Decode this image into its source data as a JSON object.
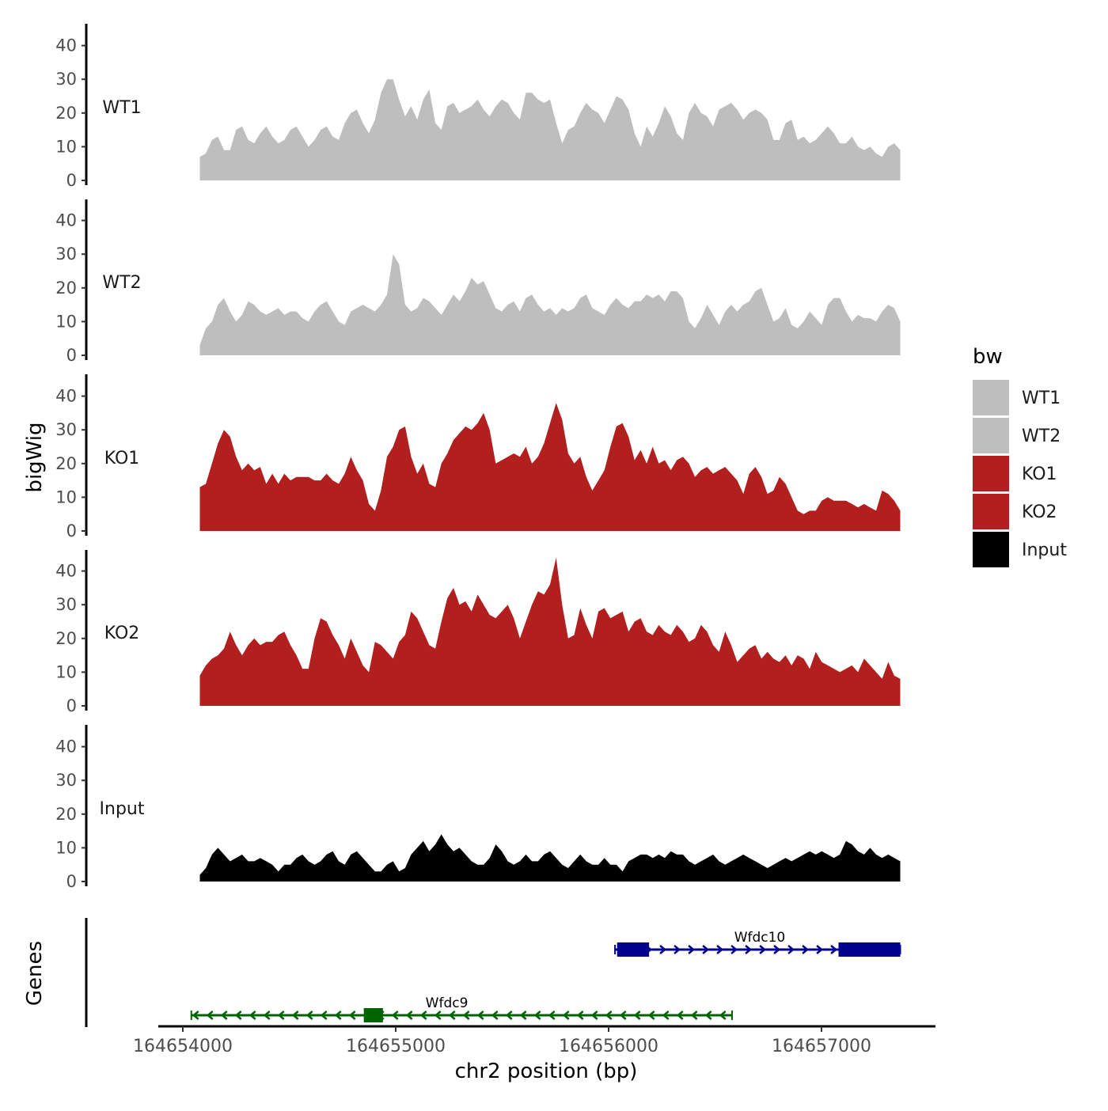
{
  "chart_data": [
    {
      "type": "area",
      "title": "",
      "ylabel": "bigWig",
      "xlabel": "chr2 position (bp)",
      "xlim": [
        164653800,
        164657500
      ],
      "ylim": [
        0,
        45
      ],
      "yticks": [
        0,
        10,
        20,
        30,
        40
      ],
      "track_range": [
        164654080,
        164657370
      ],
      "series": [
        {
          "name": "WT1",
          "color": "#bebebe",
          "values": [
            7,
            8,
            12,
            13,
            9,
            9,
            15,
            16,
            12,
            11,
            14,
            16,
            13,
            11,
            12,
            15,
            16,
            13,
            10,
            12,
            15,
            16,
            13,
            12,
            17,
            20,
            21,
            17,
            14,
            18,
            26,
            30,
            30,
            24,
            19,
            22,
            18,
            24,
            27,
            17,
            15,
            22,
            23,
            20,
            21,
            22,
            24,
            21,
            19,
            22,
            24,
            23,
            20,
            18,
            26,
            26,
            24,
            23,
            24,
            17,
            11,
            15,
            16,
            20,
            23,
            21,
            20,
            17,
            21,
            25,
            24,
            21,
            14,
            10,
            16,
            13,
            17,
            22,
            19,
            14,
            12,
            20,
            23,
            20,
            19,
            16,
            21,
            22,
            23,
            21,
            18,
            20,
            21,
            20,
            18,
            12,
            12,
            17,
            18,
            12,
            13,
            11,
            12,
            14,
            16,
            14,
            11,
            11,
            13,
            10,
            9,
            10,
            8,
            7,
            10,
            11,
            9
          ]
        },
        {
          "name": "WT2",
          "color": "#bebebe",
          "values": [
            3,
            8,
            10,
            15,
            17,
            13,
            10,
            12,
            16,
            15,
            13,
            12,
            13,
            14,
            12,
            13,
            13,
            11,
            10,
            13,
            15,
            16,
            13,
            10,
            9,
            13,
            14,
            15,
            14,
            13,
            15,
            18,
            30,
            27,
            15,
            13,
            14,
            17,
            16,
            14,
            12,
            15,
            18,
            16,
            19,
            23,
            21,
            22,
            18,
            14,
            13,
            15,
            16,
            13,
            17,
            18,
            15,
            13,
            14,
            12,
            14,
            13,
            14,
            17,
            18,
            14,
            13,
            12,
            15,
            17,
            15,
            14,
            16,
            16,
            18,
            17,
            18,
            16,
            19,
            19,
            17,
            10,
            8,
            11,
            15,
            12,
            9,
            13,
            15,
            13,
            15,
            16,
            19,
            20,
            15,
            10,
            11,
            14,
            9,
            8,
            10,
            13,
            11,
            9,
            15,
            17,
            17,
            13,
            10,
            12,
            11,
            11,
            10,
            13,
            15,
            14,
            10
          ]
        },
        {
          "name": "KO1",
          "color": "#b21f1f",
          "values": [
            13,
            14,
            20,
            26,
            30,
            28,
            22,
            18,
            20,
            18,
            19,
            14,
            17,
            14,
            17,
            15,
            16,
            16,
            16,
            15,
            15,
            17,
            15,
            14,
            17,
            22,
            18,
            15,
            8,
            6,
            12,
            22,
            25,
            30,
            31,
            22,
            17,
            20,
            14,
            13,
            20,
            23,
            27,
            29,
            31,
            30,
            32,
            35,
            30,
            20,
            21,
            22,
            23,
            22,
            25,
            20,
            22,
            26,
            32,
            38,
            33,
            23,
            20,
            22,
            16,
            12,
            15,
            18,
            25,
            31,
            32,
            28,
            21,
            24,
            20,
            25,
            20,
            21,
            18,
            21,
            22,
            20,
            16,
            18,
            19,
            17,
            18,
            19,
            17,
            15,
            11,
            17,
            19,
            16,
            11,
            12,
            16,
            14,
            10,
            6,
            5,
            6,
            6,
            9,
            10,
            9,
            9,
            9,
            8,
            7,
            8,
            7,
            6,
            12,
            11,
            9,
            6
          ]
        },
        {
          "name": "KO2",
          "color": "#b21f1f",
          "values": [
            9,
            12,
            14,
            15,
            17,
            22,
            18,
            15,
            18,
            20,
            18,
            19,
            19,
            21,
            22,
            18,
            15,
            11,
            11,
            20,
            26,
            25,
            21,
            18,
            14,
            20,
            16,
            12,
            10,
            19,
            18,
            16,
            14,
            19,
            21,
            28,
            26,
            22,
            18,
            17,
            25,
            32,
            35,
            30,
            31,
            28,
            33,
            30,
            27,
            26,
            28,
            30,
            26,
            20,
            25,
            30,
            34,
            33,
            36,
            44,
            30,
            20,
            21,
            29,
            24,
            20,
            28,
            29,
            26,
            27,
            28,
            22,
            25,
            26,
            22,
            21,
            24,
            22,
            21,
            24,
            22,
            19,
            20,
            24,
            22,
            18,
            16,
            22,
            18,
            13,
            15,
            17,
            18,
            14,
            16,
            14,
            13,
            15,
            12,
            15,
            14,
            11,
            16,
            13,
            12,
            11,
            10,
            11,
            12,
            10,
            14,
            12,
            10,
            8,
            13,
            9,
            8
          ]
        },
        {
          "name": "Input",
          "color": "#000000",
          "values": [
            2,
            4,
            8,
            10,
            8,
            6,
            7,
            8,
            6,
            6,
            7,
            6,
            5,
            3,
            5,
            5,
            7,
            8,
            6,
            5,
            6,
            8,
            9,
            6,
            5,
            8,
            9,
            7,
            5,
            3,
            3,
            5,
            6,
            3,
            4,
            8,
            10,
            12,
            9,
            11,
            14,
            11,
            9,
            10,
            8,
            6,
            5,
            5,
            7,
            11,
            9,
            6,
            5,
            6,
            8,
            6,
            6,
            8,
            9,
            7,
            5,
            4,
            6,
            8,
            6,
            5,
            5,
            7,
            5,
            5,
            3,
            6,
            7,
            8,
            8,
            7,
            8,
            7,
            9,
            8,
            8,
            6,
            5,
            6,
            7,
            8,
            6,
            5,
            6,
            7,
            8,
            7,
            6,
            5,
            4,
            5,
            6,
            7,
            6,
            7,
            8,
            9,
            8,
            9,
            8,
            7,
            8,
            12,
            11,
            9,
            8,
            10,
            8,
            7,
            8,
            7,
            6
          ]
        }
      ],
      "legend": {
        "title": "bw",
        "entries": [
          {
            "label": "WT1",
            "color": "#bebebe"
          },
          {
            "label": "WT2",
            "color": "#bebebe"
          },
          {
            "label": "KO1",
            "color": "#b21f1f"
          },
          {
            "label": "KO2",
            "color": "#b21f1f"
          },
          {
            "label": "Input",
            "color": "#000000"
          }
        ]
      }
    },
    {
      "type": "gene_track",
      "ylabel": "Genes",
      "xticks": [
        164654000,
        164655000,
        164656000,
        164657000
      ],
      "xtick_labels": [
        "164654000",
        "164655000",
        "164656000",
        "164657000"
      ],
      "genes": [
        {
          "name": "Wfdc10",
          "strand": "+",
          "color": "#00008b",
          "row": 1,
          "start": 164656030,
          "end": 164657370,
          "exons": [
            [
              164656040,
              164656190
            ],
            [
              164657080,
              164657370
            ]
          ]
        },
        {
          "name": "Wfdc9",
          "strand": "-",
          "color": "#006400",
          "row": 2,
          "start": 164654040,
          "end": 164656580,
          "exons": [
            [
              164654850,
              164654940
            ]
          ]
        }
      ]
    }
  ]
}
